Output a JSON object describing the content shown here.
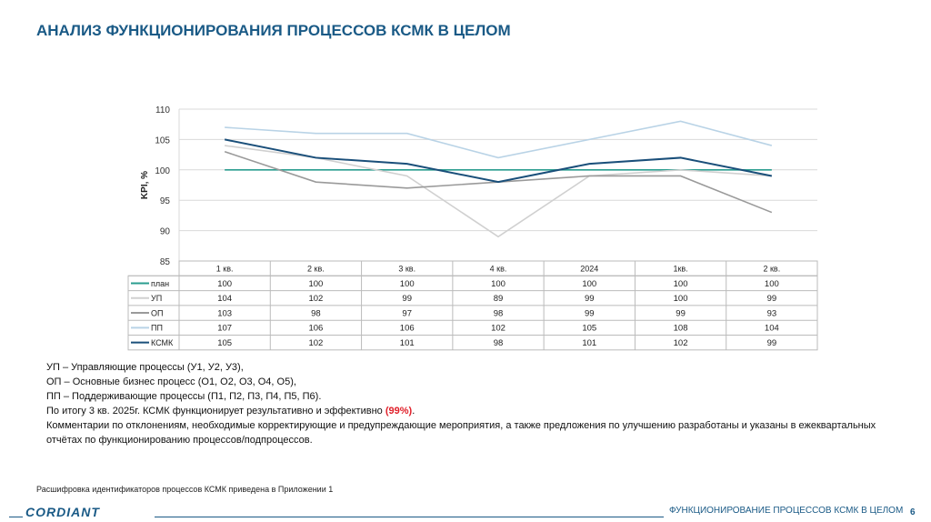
{
  "title": "АНАЛИЗ ФУНКЦИОНИРОВАНИЯ ПРОЦЕССОВ КСМК В ЦЕЛОМ",
  "chart_data": {
    "type": "line",
    "ylabel": "KPI, %",
    "ylim": [
      85,
      110
    ],
    "yticks": [
      85,
      90,
      95,
      100,
      105,
      110
    ],
    "grid": true,
    "legend": "data-table",
    "categories": [
      "1 кв.",
      "2 кв.",
      "3 кв.",
      "4 кв.",
      "2024",
      "1кв.",
      "2 кв."
    ],
    "series": [
      {
        "name": "план",
        "color": "#2a9d8f",
        "values": [
          100,
          100,
          100,
          100,
          100,
          100,
          100
        ]
      },
      {
        "name": "УП",
        "color": "#d0d0d0",
        "values": [
          104,
          102,
          99,
          89,
          99,
          100,
          99
        ]
      },
      {
        "name": "ОП",
        "color": "#9a9a9a",
        "values": [
          103,
          98,
          97,
          98,
          99,
          99,
          93
        ]
      },
      {
        "name": "ПП",
        "color": "#b9d3e6",
        "values": [
          107,
          106,
          106,
          102,
          105,
          108,
          104
        ]
      },
      {
        "name": "КСМК",
        "color": "#1a4f7a",
        "values": [
          105,
          102,
          101,
          98,
          101,
          102,
          99
        ]
      }
    ]
  },
  "notes": {
    "l1": "УП – Управляющие процессы (У1, У2, У3),",
    "l2": "ОП – Основные бизнес процесс (О1, О2, О3, О4, О5),",
    "l3": "ПП – Поддерживающие процессы (П1, П2, П3, П4, П5, П6).",
    "l4a": "По итогу 3 кв. 2025г. КСМК функционирует результативно и эффективно ",
    "l4b": "(99%)",
    "l4c": ".",
    "l5": "Комментарии по отклонениям, необходимые корректирующие и предупреждающие мероприятия, а также предложения по улучшению разработаны и указаны в ежеквартальных отчётах по функционированию процессов/подпроцессов."
  },
  "footnote": "Расшифровка идентификаторов процессов КСМК приведена в Приложении 1",
  "logo": "CORDIANT",
  "section": "ФУНКЦИОНИРОВАНИЕ ПРОЦЕССОВ КСМК В ЦЕЛОМ",
  "page": "6"
}
